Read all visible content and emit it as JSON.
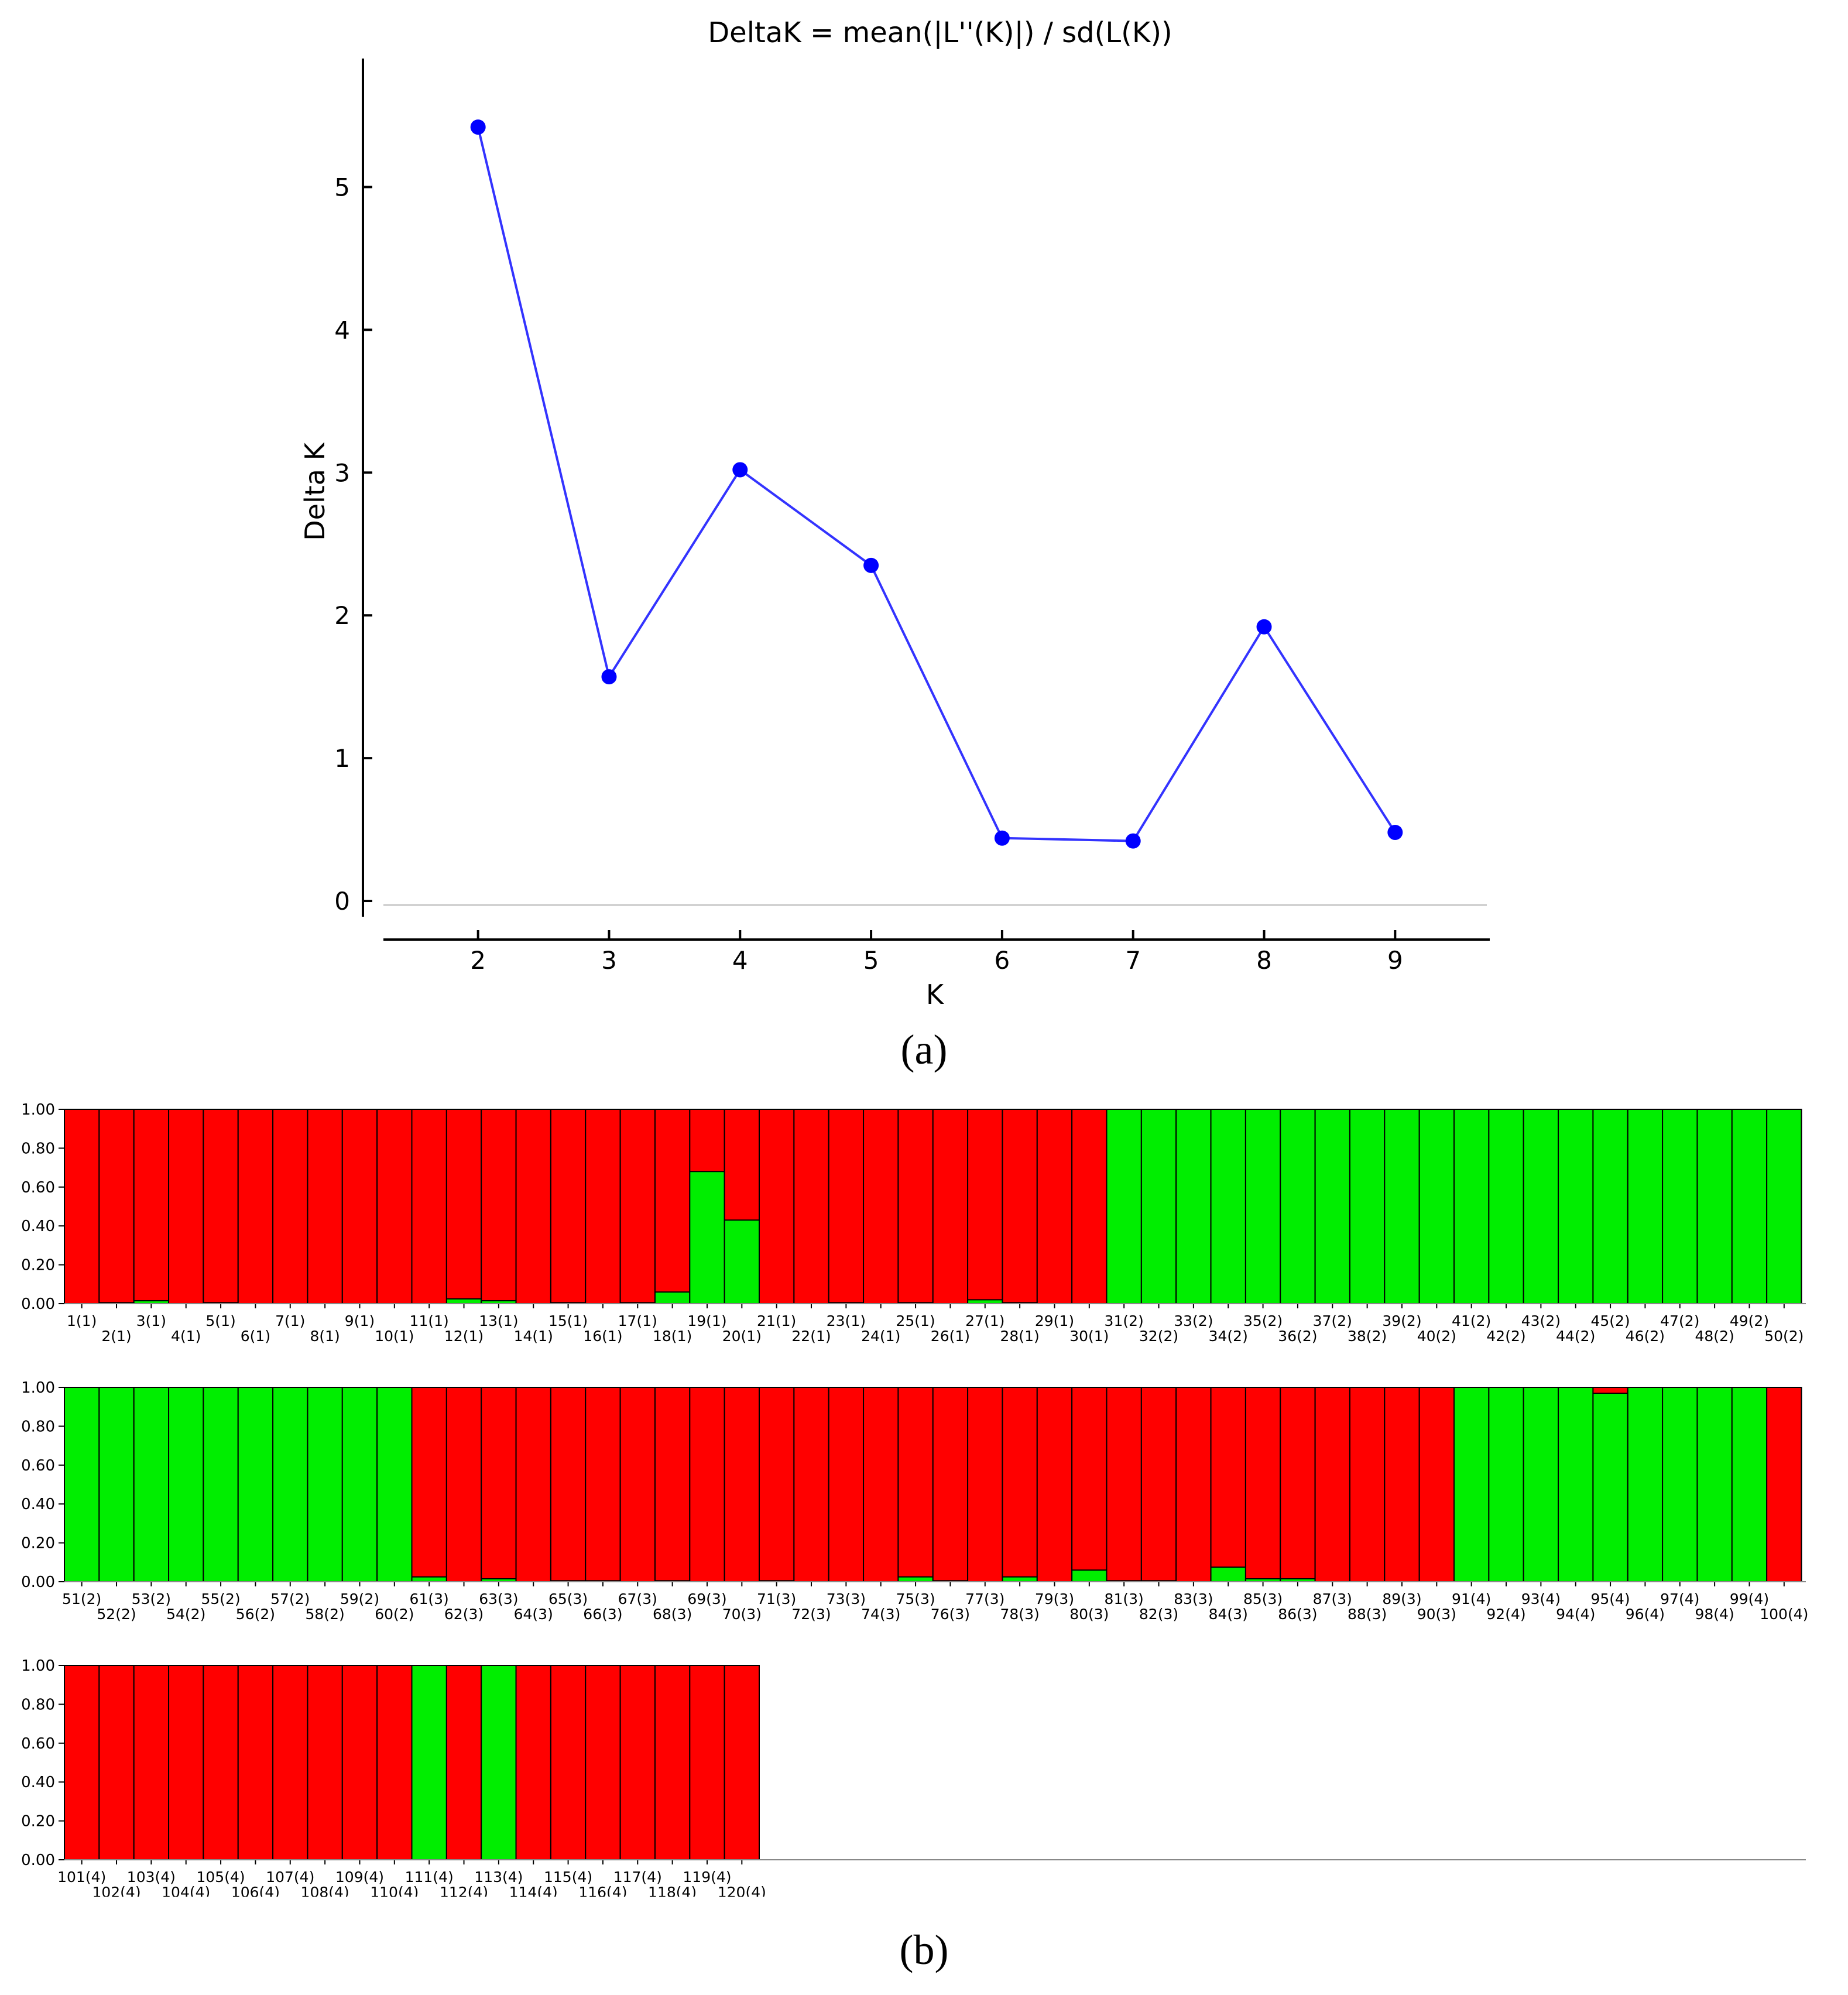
{
  "panel_labels": {
    "a": "(a)",
    "b": "(b)"
  },
  "colors": {
    "line": "#3333ff",
    "point": "#0000ff",
    "pop1": "#ff0000",
    "pop2": "#00ee00"
  },
  "chart_data": [
    {
      "type": "line",
      "title": "DeltaK = mean(|L''(K)|) / sd(L(K))",
      "xlabel": "K",
      "ylabel": "Delta K",
      "x": [
        2,
        3,
        4,
        5,
        6,
        7,
        8,
        9
      ],
      "series": [
        {
          "values": [
            5.42,
            1.57,
            3.02,
            2.35,
            0.44,
            0.42,
            1.92,
            0.48
          ]
        }
      ],
      "xlim": [
        1.3,
        9.7
      ],
      "ylim": [
        -0.25,
        5.9
      ],
      "xticks": [
        "2",
        "3",
        "4",
        "5",
        "6",
        "7",
        "8",
        "9"
      ],
      "yticks": [
        "0",
        "1",
        "2",
        "3",
        "4",
        "5"
      ],
      "grid": false
    },
    {
      "type": "bar",
      "stacked": true,
      "title": "",
      "yticks": [
        "0.00",
        "0.20",
        "0.40",
        "0.60",
        "0.80",
        "1.00"
      ],
      "ylim": [
        0,
        1
      ],
      "series_colors": [
        "#00ee00",
        "#ff0000"
      ],
      "labels": [
        "1(1)",
        "2(1)",
        "3(1)",
        "4(1)",
        "5(1)",
        "6(1)",
        "7(1)",
        "8(1)",
        "9(1)",
        "10(1)",
        "11(1)",
        "12(1)",
        "13(1)",
        "14(1)",
        "15(1)",
        "16(1)",
        "17(1)",
        "18(1)",
        "19(1)",
        "20(1)",
        "21(1)",
        "22(1)",
        "23(1)",
        "24(1)",
        "25(1)",
        "26(1)",
        "27(1)",
        "28(1)",
        "29(1)",
        "30(1)",
        "31(2)",
        "32(2)",
        "33(2)",
        "34(2)",
        "35(2)",
        "36(2)",
        "37(2)",
        "38(2)",
        "39(2)",
        "40(2)",
        "41(2)",
        "42(2)",
        "43(2)",
        "44(2)",
        "45(2)",
        "46(2)",
        "47(2)",
        "48(2)",
        "49(2)",
        "50(2)",
        "51(2)",
        "52(2)",
        "53(2)",
        "54(2)",
        "55(2)",
        "56(2)",
        "57(2)",
        "58(2)",
        "59(2)",
        "60(2)",
        "61(3)",
        "62(3)",
        "63(3)",
        "64(3)",
        "65(3)",
        "66(3)",
        "67(3)",
        "68(3)",
        "69(3)",
        "70(3)",
        "71(3)",
        "72(3)",
        "73(3)",
        "74(3)",
        "75(3)",
        "76(3)",
        "77(3)",
        "78(3)",
        "79(3)",
        "80(3)",
        "81(3)",
        "82(3)",
        "83(3)",
        "84(3)",
        "85(3)",
        "86(3)",
        "87(3)",
        "88(3)",
        "89(3)",
        "90(3)",
        "91(4)",
        "92(4)",
        "93(4)",
        "94(4)",
        "95(4)",
        "96(4)",
        "97(4)",
        "98(4)",
        "99(4)",
        "100(4)",
        "101(4)",
        "102(4)",
        "103(4)",
        "104(4)",
        "105(4)",
        "106(4)",
        "107(4)",
        "108(4)",
        "109(4)",
        "110(4)",
        "111(4)",
        "112(4)",
        "113(4)",
        "114(4)",
        "115(4)",
        "116(4)",
        "117(4)",
        "118(4)",
        "119(4)",
        "120(4)"
      ],
      "green": [
        0,
        0.005,
        0.015,
        0,
        0.005,
        0,
        0,
        0,
        0,
        0,
        0,
        0.025,
        0.015,
        0,
        0.005,
        0,
        0.005,
        0.06,
        0.68,
        0.43,
        0,
        0,
        0.005,
        0,
        0.005,
        0,
        0.02,
        0.005,
        0,
        0,
        1,
        1,
        1,
        1,
        1,
        1,
        1,
        1,
        1,
        1,
        1,
        1,
        1,
        1,
        1,
        1,
        1,
        1,
        1,
        1,
        1,
        1,
        1,
        1,
        1,
        1,
        1,
        1,
        1,
        1,
        0.025,
        0,
        0.015,
        0,
        0.005,
        0.005,
        0,
        0.005,
        0,
        0,
        0.005,
        0,
        0,
        0,
        0.025,
        0.005,
        0,
        0.025,
        0,
        0.06,
        0.005,
        0.005,
        0,
        0.075,
        0.015,
        0.015,
        0,
        0,
        0,
        0,
        1,
        1,
        1,
        1,
        0.97,
        1,
        1,
        1,
        1,
        0,
        0,
        0,
        0,
        0,
        0,
        0,
        0,
        0,
        0,
        0,
        1,
        0,
        1,
        0,
        0,
        0,
        0,
        0,
        0,
        0
      ]
    }
  ]
}
